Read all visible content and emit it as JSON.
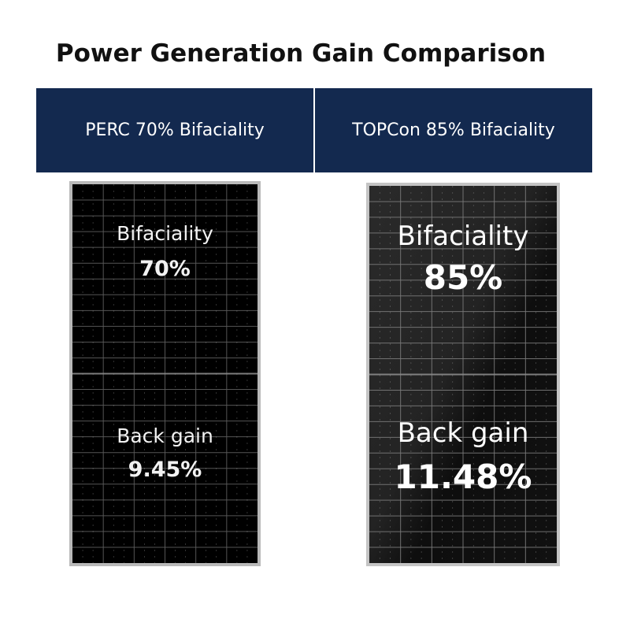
{
  "title": "Power Generation Gain Comparison",
  "colors": {
    "header_bg": "#13294f",
    "header_text": "#ffffff",
    "panel_bg": "#000000",
    "panel_frame": "#b9b9b9"
  },
  "left": {
    "header": "PERC 70% Bifaciality",
    "bifaciality_label": "Bifaciality",
    "bifaciality_value": "70%",
    "back_gain_label": "Back gain",
    "back_gain_value": "9.45%"
  },
  "right": {
    "header": "TOPCon 85% Bifaciality",
    "bifaciality_label": "Bifaciality",
    "bifaciality_value": "85%",
    "back_gain_label": "Back gain",
    "back_gain_value": "11.48%"
  }
}
